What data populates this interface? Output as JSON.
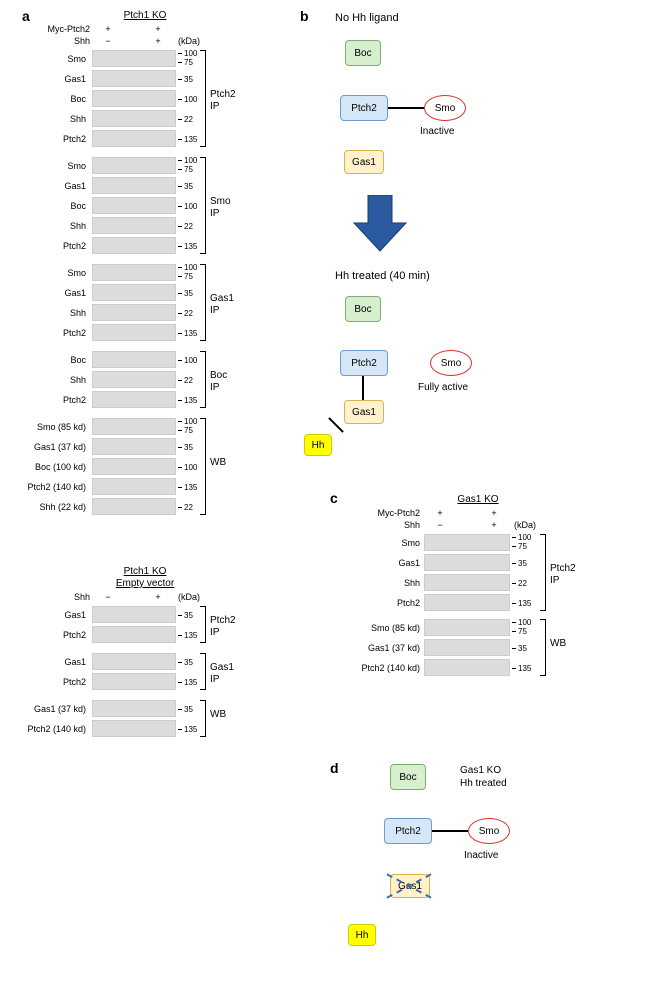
{
  "letters": {
    "a": "a",
    "b": "b",
    "c": "c",
    "d": "d"
  },
  "panelA": {
    "title": "Ptch1 KO",
    "hdr1": "Myc-Ptch2",
    "hdr2": "Shh",
    "lane1a": "+",
    "lane1b": "−",
    "lane2a": "+",
    "lane2b": "+",
    "kda": "(kDa)",
    "mw": {
      "100": "100",
      "75": "75",
      "35": "35",
      "22": "22",
      "135": "135"
    },
    "rows1": [
      "Smo",
      "Gas1",
      "Boc",
      "Shh",
      "Ptch2"
    ],
    "bracket1": "Ptch2\nIP",
    "rows2": [
      "Smo",
      "Gas1",
      "Boc",
      "Shh",
      "Ptch2"
    ],
    "bracket2": "Smo\nIP",
    "rows3": [
      "Smo",
      "Gas1",
      "Shh",
      "Ptch2"
    ],
    "bracket3": "Gas1\nIP",
    "rows4": [
      "Boc",
      "Shh",
      "Ptch2"
    ],
    "bracket4": "Boc\nIP",
    "rows5": [
      "Smo (85 kd)",
      "Gas1 (37 kd)",
      "Boc (100 kd)",
      "Ptch2 (140 kd)",
      "Shh (22 kd)"
    ],
    "bracket5": "WB",
    "lower": {
      "title1": "Ptch1 KO",
      "title2": "Empty vector",
      "hdr": "Shh",
      "laneA": "−",
      "laneB": "+",
      "kda": "(kDa)",
      "g1": [
        "Gas1",
        "Ptch2"
      ],
      "b1": "Ptch2\nIP",
      "g2": [
        "Gas1",
        "Ptch2"
      ],
      "b2": "Gas1\nIP",
      "g3": [
        "Gas1 (37 kd)",
        "Ptch2 (140 kd)"
      ],
      "b3": "WB"
    }
  },
  "panelB": {
    "h1": "No Hh ligand",
    "h2": "Hh treated (40 min)",
    "boc": "Boc",
    "ptch2": "Ptch2",
    "smo": "Smo",
    "gas1": "Gas1",
    "hh": "Hh",
    "inactive": "Inactive",
    "active": "Fully active"
  },
  "panelC": {
    "title": "Gas1 KO",
    "hdr1": "Myc-Ptch2",
    "hdr2": "Shh",
    "l1a": "+",
    "l1b": "−",
    "l2a": "+",
    "l2b": "+",
    "kda": "(kDa)",
    "rowsIP": [
      "Smo",
      "Gas1",
      "Shh",
      "Ptch2"
    ],
    "bracketIP": "Ptch2\nIP",
    "rowsWB": [
      "Smo (85 kd)",
      "Gas1 (37 kd)",
      "Ptch2 (140 kd)"
    ],
    "bracketWB": "WB"
  },
  "panelD": {
    "title": "Gas1 KO\nHh treated",
    "boc": "Boc",
    "ptch2": "Ptch2",
    "smo": "Smo",
    "gas1": "Gas1",
    "hh": "Hh",
    "inactive": "Inactive"
  },
  "style": {
    "blot_bg": "#dcdcdc",
    "boc_bg": "#d6efce",
    "ptch2_bg": "#d5e6f6",
    "gas1_bg": "#fff2cc",
    "smo_border": "#d93025",
    "hh_bg": "#ffff00",
    "arrow_fill": "#2c5aa0"
  }
}
